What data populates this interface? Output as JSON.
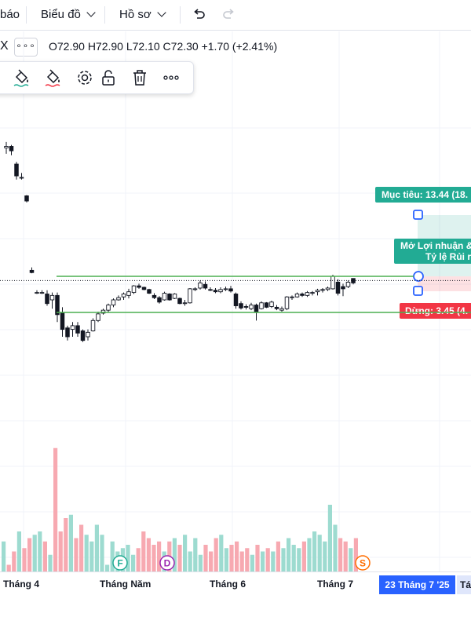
{
  "topbar": {
    "partial_item": "báo",
    "chart_menu": "Biểu đồ",
    "profile_menu": "Hồ sơ"
  },
  "legend": {
    "symbol_tail": "X",
    "more": "∘∘∘",
    "ohlc": "O72.90 H72.90 L72.10 C72.30 +1.70 (+2.41%)"
  },
  "toolbar": {
    "icons": [
      "fill-bucket-icon",
      "text-color-icon",
      "gear-icon",
      "unlock-icon",
      "trash-icon",
      "more-icon"
    ]
  },
  "position_tool": {
    "target_label": "Mục tiêu: 13.44 (18.",
    "open_label_1": "Mở Lợi nhuận &",
    "open_label_2": "Tỷ lệ Rủi r",
    "stop_label": "Dừng: 3.45 (4.",
    "target_color": "#22ab94",
    "stop_color": "#f23645"
  },
  "x_axis": {
    "labels": [
      "Tháng 4",
      "Tháng Năm",
      "Tháng 6",
      "Tháng 7"
    ],
    "crosshair_label": "23 Tháng 7 '25",
    "next_label": "Tá"
  },
  "events": [
    "F",
    "D",
    "S"
  ],
  "chart_data": {
    "type": "candlestick",
    "last_price": 72.3,
    "ohlc_last": {
      "open": 72.9,
      "high": 72.9,
      "low": 72.1,
      "close": 72.3,
      "change": 1.7,
      "change_pct": 2.41
    },
    "target_pct_visible": 13.44,
    "stop_pct_visible": 3.45,
    "y_range": [
      50,
      100
    ],
    "horizontal_lines": [
      72.3,
      68.92
    ],
    "candles": [
      [
        90.6,
        91.4,
        89.8,
        90.8
      ],
      [
        90.8,
        91.0,
        89.6,
        90.2
      ],
      [
        88.4,
        88.7,
        86.3,
        86.8
      ],
      [
        86.6,
        87.2,
        86.3,
        86.6
      ],
      [
        84.1,
        84.2,
        83.2,
        83.4
      ],
      [
        74.0,
        74.4,
        73.6,
        73.7
      ],
      [
        71.0,
        71.3,
        70.8,
        71.0
      ],
      [
        71.0,
        71.3,
        70.8,
        71.0
      ],
      [
        70.8,
        71.3,
        69.2,
        69.5
      ],
      [
        70.0,
        71.0,
        68.8,
        70.6
      ],
      [
        70.6,
        71.0,
        67.0,
        68.0
      ],
      [
        68.2,
        69.0,
        65.0,
        66.0
      ],
      [
        66.2,
        66.5,
        64.5,
        65.0
      ],
      [
        66.0,
        67.0,
        65.0,
        66.5
      ],
      [
        66.5,
        67.0,
        65.0,
        65.5
      ],
      [
        65.8,
        66.0,
        64.3,
        64.5
      ],
      [
        65.0,
        66.0,
        64.5,
        65.6
      ],
      [
        65.8,
        67.5,
        65.7,
        67.2
      ],
      [
        67.2,
        68.4,
        67.0,
        68.1
      ],
      [
        68.2,
        68.8,
        68.0,
        68.6
      ],
      [
        68.6,
        69.5,
        68.3,
        69.3
      ],
      [
        69.3,
        70.2,
        69.0,
        70.0
      ],
      [
        70.0,
        70.6,
        69.9,
        70.3
      ],
      [
        70.4,
        71.0,
        70.0,
        70.8
      ],
      [
        70.6,
        71.5,
        70.2,
        71.1
      ],
      [
        71.0,
        72.0,
        70.8,
        71.9
      ],
      [
        71.9,
        72.2,
        71.5,
        71.7
      ],
      [
        71.7,
        71.8,
        71.3,
        71.4
      ],
      [
        71.4,
        71.5,
        70.8,
        70.9
      ],
      [
        70.6,
        70.9,
        70.1,
        70.3
      ],
      [
        70.3,
        70.5,
        69.5,
        69.7
      ],
      [
        70.0,
        71.1,
        69.9,
        70.9
      ],
      [
        70.8,
        70.9,
        69.9,
        70.0
      ],
      [
        70.2,
        70.9,
        70.1,
        70.8
      ],
      [
        70.2,
        70.3,
        69.4,
        69.5
      ],
      [
        69.6,
        70.0,
        69.2,
        69.6
      ],
      [
        69.6,
        71.6,
        69.5,
        71.5
      ],
      [
        71.4,
        71.7,
        71.2,
        71.5
      ],
      [
        71.6,
        72.6,
        71.4,
        72.3
      ],
      [
        72.1,
        72.5,
        71.4,
        71.6
      ],
      [
        71.4,
        71.7,
        71.2,
        71.3
      ],
      [
        71.3,
        71.6,
        70.9,
        71.1
      ],
      [
        71.1,
        71.7,
        70.9,
        71.4
      ],
      [
        71.4,
        71.8,
        71.2,
        71.5
      ],
      [
        71.5,
        71.9,
        71.0,
        71.2
      ],
      [
        70.8,
        71.0,
        68.8,
        69.2
      ],
      [
        69.5,
        69.8,
        68.7,
        68.9
      ],
      [
        69.1,
        69.4,
        68.7,
        69.0
      ],
      [
        68.8,
        69.6,
        68.6,
        69.3
      ],
      [
        69.3,
        69.5,
        67.2,
        68.3
      ],
      [
        68.8,
        69.8,
        68.7,
        69.6
      ],
      [
        69.6,
        69.7,
        68.9,
        69.0
      ],
      [
        69.1,
        69.9,
        68.9,
        69.7
      ],
      [
        69.0,
        69.3,
        68.6,
        68.8
      ],
      [
        68.6,
        69.1,
        68.4,
        68.8
      ],
      [
        68.8,
        70.5,
        68.6,
        70.4
      ],
      [
        70.3,
        70.6,
        70.0,
        70.4
      ],
      [
        70.4,
        71.0,
        70.3,
        70.8
      ],
      [
        70.8,
        71.0,
        70.4,
        70.6
      ],
      [
        70.6,
        71.2,
        70.4,
        71.0
      ],
      [
        70.9,
        71.2,
        70.6,
        71.0
      ],
      [
        71.1,
        71.5,
        70.6,
        71.3
      ],
      [
        71.3,
        71.6,
        71.0,
        71.4
      ],
      [
        71.4,
        71.8,
        71.2,
        71.6
      ],
      [
        71.5,
        73.4,
        71.4,
        73.2
      ],
      [
        72.4,
        72.8,
        70.6,
        70.9
      ],
      [
        71.8,
        72.2,
        70.5,
        71.5
      ],
      [
        71.8,
        72.6,
        71.6,
        72.4
      ],
      [
        72.9,
        72.9,
        72.1,
        72.3
      ]
    ],
    "volume": [
      9,
      2,
      6,
      12,
      7,
      10,
      11,
      12,
      9,
      5,
      37,
      12,
      16,
      17,
      10,
      14,
      11,
      9,
      14,
      11,
      2,
      9,
      6,
      7,
      8,
      5,
      7,
      12,
      10,
      8,
      9,
      6,
      9,
      10,
      8,
      11,
      6,
      10,
      5,
      8,
      6,
      10,
      11,
      7,
      8,
      9,
      6,
      7,
      5,
      8,
      6,
      7,
      6,
      9,
      7,
      10,
      8,
      7,
      9,
      10,
      12,
      11,
      9,
      20,
      14,
      10,
      9,
      7,
      10
    ],
    "volume_colors": "down=#f7a9b1 up=#9ddbd0"
  }
}
